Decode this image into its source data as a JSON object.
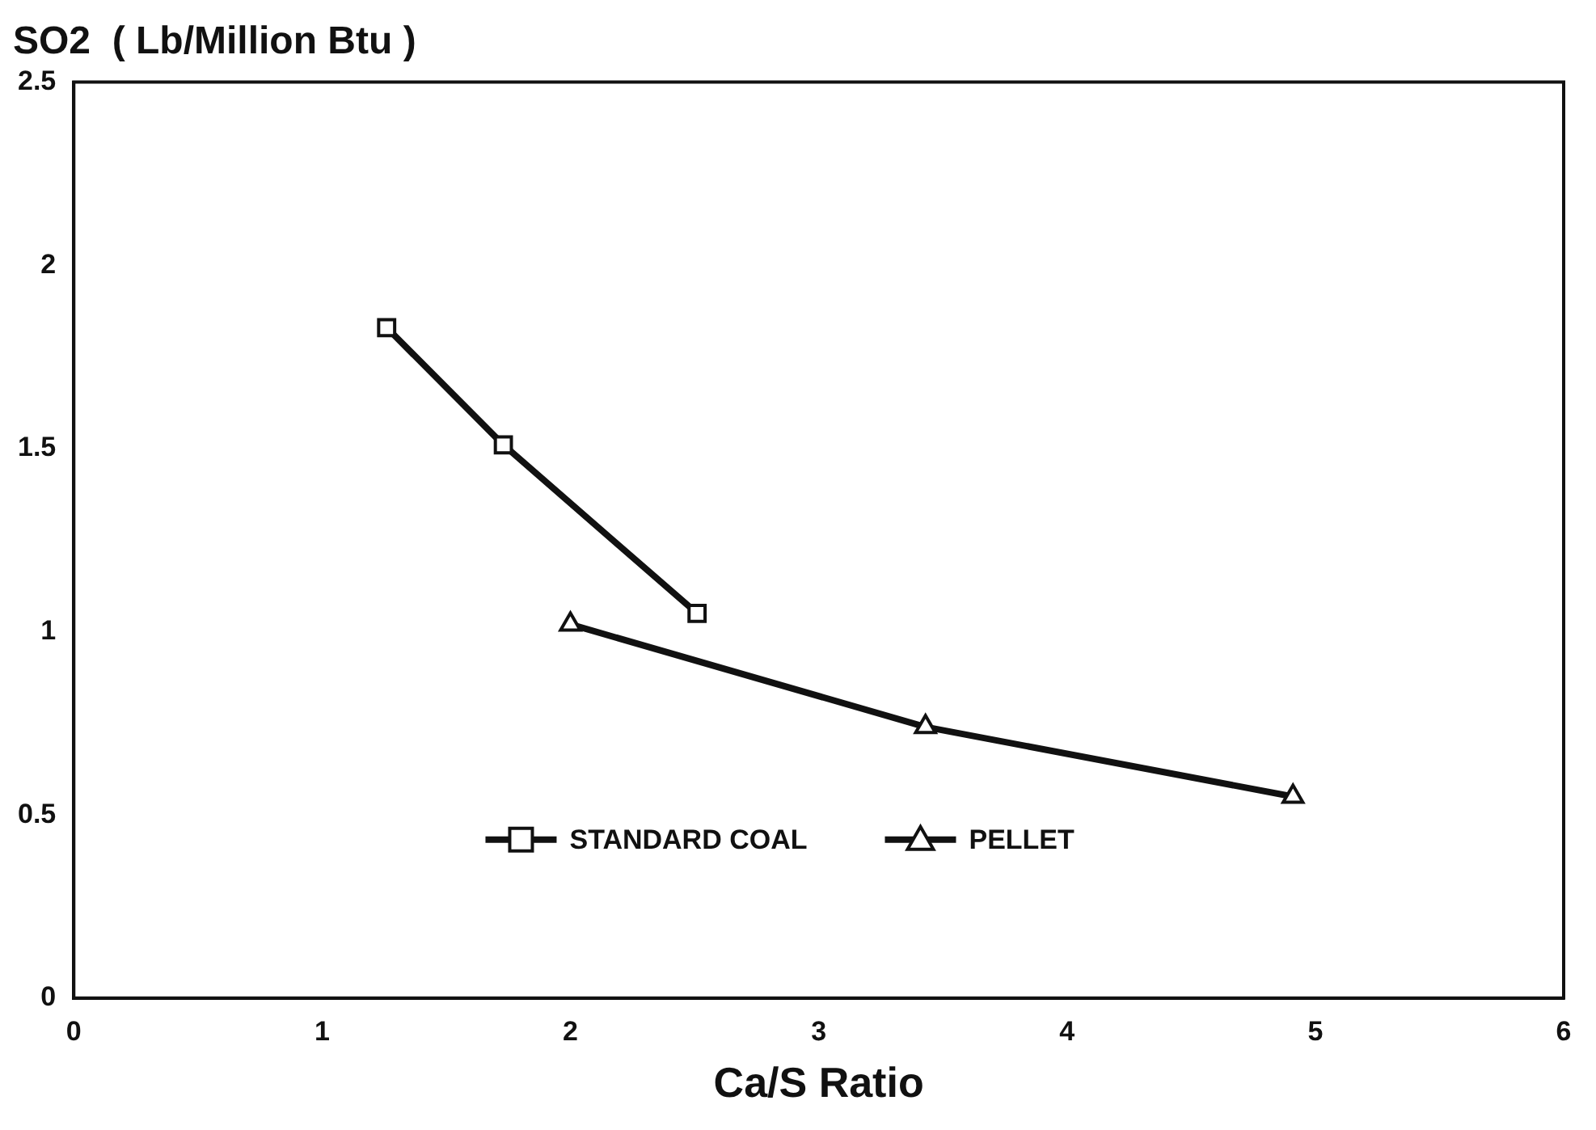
{
  "chart_data": {
    "type": "line",
    "ylabel": "SO2  ( Lb/Million Btu )",
    "xlabel": "Ca/S Ratio",
    "series": [
      {
        "name": "STANDARD COAL",
        "color": "#111111",
        "marker": "square",
        "x": [
          1.26,
          1.73,
          2.51
        ],
        "values": [
          1.83,
          1.51,
          1.05
        ]
      },
      {
        "name": "PELLET",
        "color": "#111111",
        "marker": "triangle",
        "x": [
          2.0,
          3.43,
          4.91
        ],
        "values": [
          1.02,
          0.74,
          0.55
        ]
      }
    ],
    "xlim": [
      0,
      6
    ],
    "xticks": [
      0,
      1,
      2,
      3,
      4,
      5,
      6
    ],
    "ylim": [
      0,
      2.5
    ],
    "yticks": [
      0,
      0.5,
      1,
      1.5,
      2,
      2.5
    ],
    "grid": false,
    "legend": "bottom",
    "line_style": "solid"
  }
}
